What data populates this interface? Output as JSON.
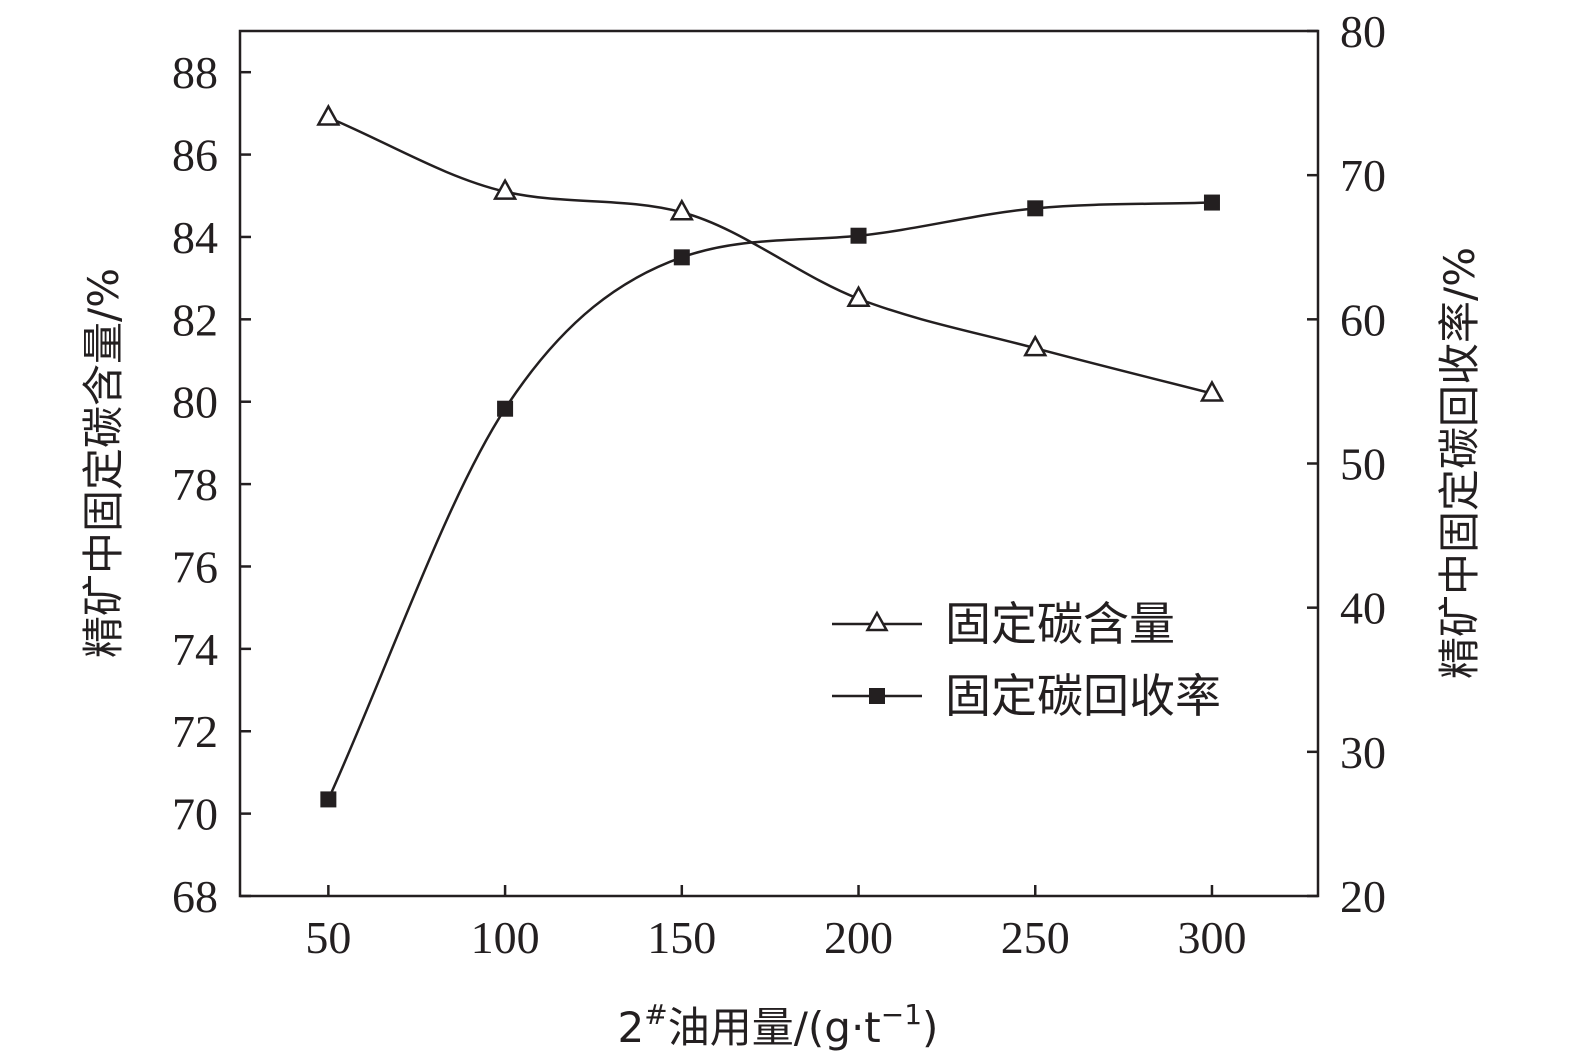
{
  "chart_data": {
    "type": "line",
    "x": [
      50,
      100,
      150,
      200,
      250,
      300
    ],
    "x_ticks": [
      "50",
      "100",
      "150",
      "200",
      "250",
      "300"
    ],
    "xlim": [
      25,
      330
    ],
    "xlabel": {
      "main": "2",
      "sup": "#",
      "rest": "油用量/(g·t",
      "exp": "−1",
      "close": ")"
    },
    "y_left": {
      "label": "精矿中固定碳含量/%",
      "ticks": [
        "68",
        "70",
        "72",
        "74",
        "76",
        "78",
        "80",
        "82",
        "84",
        "86",
        "88"
      ],
      "lim": [
        68,
        89
      ]
    },
    "y_right": {
      "label": "精矿中固定碳回收率/%",
      "ticks": [
        "20",
        "30",
        "40",
        "50",
        "60",
        "70",
        "80"
      ],
      "lim": [
        20,
        80
      ]
    },
    "series": [
      {
        "name": "固定碳含量",
        "axis": "left",
        "marker": "triangle-open",
        "values": [
          86.9,
          85.1,
          84.6,
          82.5,
          81.3,
          80.2
        ]
      },
      {
        "name": "固定碳回收率",
        "axis": "right",
        "marker": "square-filled",
        "values": [
          26.7,
          53.8,
          64.3,
          65.8,
          67.7,
          68.1
        ]
      }
    ],
    "legend_position": "center-right",
    "grid": false,
    "colors": {
      "ink": "#231f20"
    }
  }
}
